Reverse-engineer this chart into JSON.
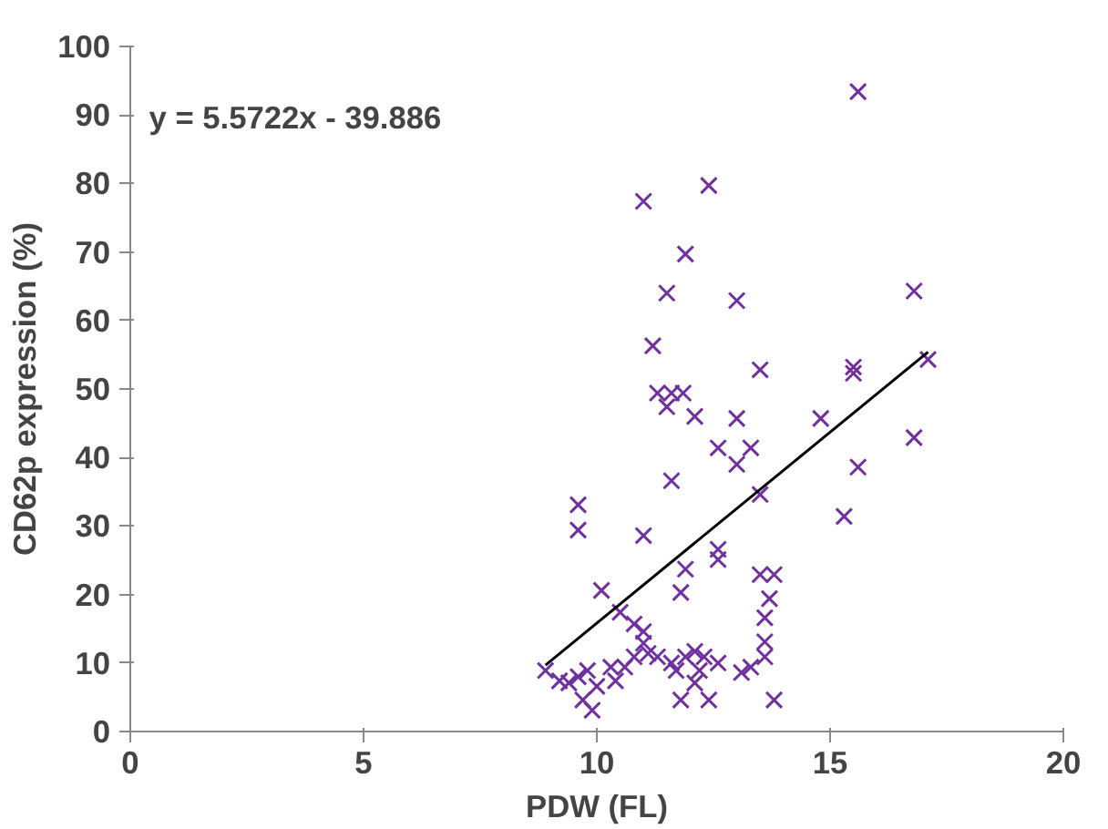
{
  "chart_data": {
    "type": "scatter",
    "xlabel": "PDW (FL)",
    "ylabel": "CD62p expression (%)",
    "annotations": [
      "y = 5.5722x - 39.886"
    ],
    "xlim": [
      0,
      20
    ],
    "xticks": [
      0,
      5,
      10,
      15,
      20
    ],
    "ylim": [
      0,
      100
    ],
    "yticks": [
      0,
      10,
      20,
      30,
      40,
      50,
      60,
      70,
      80,
      90,
      100
    ],
    "grid": false,
    "series": [
      {
        "marker": "cross",
        "color": "#7030a0",
        "x": [
          15.6,
          11.0,
          12.4,
          11.9,
          11.5,
          13.0,
          16.8,
          11.2,
          13.5,
          15.5,
          15.5,
          17.1,
          11.3,
          11.6,
          11.85,
          11.5,
          12.1,
          13.0,
          14.8,
          16.8,
          12.6,
          13.3,
          13.0,
          15.6,
          11.6,
          13.5,
          9.6,
          9.6,
          11.0,
          15.3,
          12.6,
          12.6,
          11.9,
          11.8,
          13.5,
          13.8,
          10.1,
          13.7,
          13.6,
          13.6,
          13.6,
          13.8,
          10.5,
          10.8,
          11.0,
          11.0,
          11.1,
          8.9,
          9.2,
          9.4,
          9.6,
          9.8,
          9.7,
          9.9,
          10.0,
          10.3,
          10.4,
          10.6,
          10.8,
          11.3,
          11.6,
          11.7,
          11.8,
          11.9,
          12.1,
          12.2,
          12.3,
          12.4,
          12.6,
          13.1,
          13.3,
          12.1
        ],
        "values": [
          93.4,
          77.4,
          79.7,
          69.7,
          64,
          62.9,
          64.3,
          56.3,
          52.8,
          52.3,
          53.2,
          54.3,
          49.4,
          49.4,
          49.4,
          47.4,
          46,
          45.7,
          45.7,
          42.9,
          41.4,
          41.4,
          39,
          38.6,
          36.6,
          34.6,
          33.1,
          29.4,
          28.6,
          31.4,
          26.6,
          25.1,
          23.7,
          20.3,
          22.9,
          22.9,
          20.6,
          19.4,
          16.6,
          13.1,
          10.9,
          4.6,
          17.4,
          15.7,
          14.6,
          12.9,
          11.4,
          8.9,
          7.4,
          7.1,
          8,
          8.9,
          4.6,
          3.1,
          6.6,
          9.4,
          7.4,
          9.4,
          10.9,
          10.9,
          10,
          8.9,
          4.6,
          10.9,
          11.7,
          8.9,
          10.9,
          4.6,
          10,
          8.6,
          9.4,
          7.1
        ]
      },
      {
        "type": "line",
        "color": "#000000",
        "x": [
          8.9,
          17.1
        ],
        "values": [
          9.7,
          55.4
        ]
      }
    ]
  }
}
